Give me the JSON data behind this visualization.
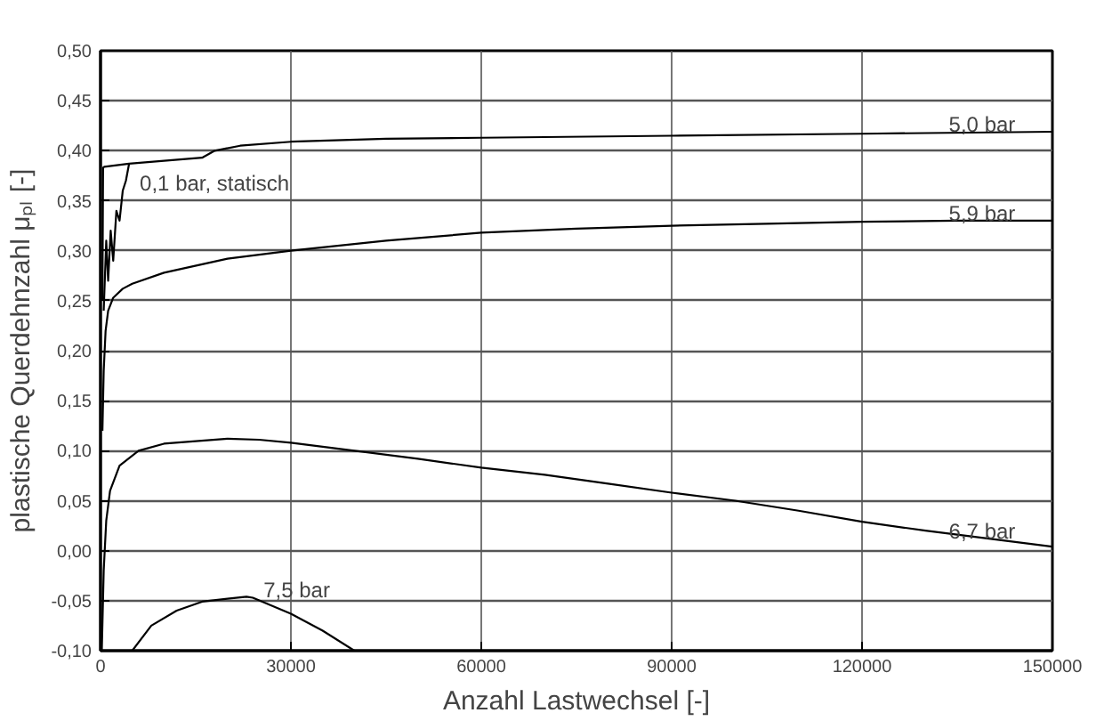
{
  "chart_data": {
    "type": "line",
    "xlabel": "Anzahl Lastwechsel [-]",
    "ylabel": "plastische Querdehnzahl μₚₗ [-]",
    "xlim": [
      0,
      150000
    ],
    "xticks": [
      0,
      30000,
      60000,
      90000,
      120000,
      150000
    ],
    "ylim": [
      -0.1,
      0.5
    ],
    "yticks": [
      {
        "value": -0.1,
        "label": "-0,10"
      },
      {
        "value": -0.05,
        "label": "-0,05"
      },
      {
        "value": 0,
        "label": "0,00"
      },
      {
        "value": 0.05,
        "label": "0,05"
      },
      {
        "value": 0.1,
        "label": "0,10"
      },
      {
        "value": 0.15,
        "label": "0,15"
      },
      {
        "value": 0.2,
        "label": "0,20"
      },
      {
        "value": 0.25,
        "label": "0,25"
      },
      {
        "value": 0.3,
        "label": "0,30"
      },
      {
        "value": 0.35,
        "label": "0,35"
      },
      {
        "value": 0.4,
        "label": "0,40"
      },
      {
        "value": 0.45,
        "label": "0,45"
      },
      {
        "value": 0.5,
        "label": "0,50"
      }
    ],
    "grid": true,
    "marker": "none",
    "line_style": "solid",
    "series": [
      {
        "color": "#000000",
        "x": [
          500,
          900,
          1200,
          1600,
          2000,
          2500,
          3000,
          3500,
          4000,
          4500
        ],
        "values": [
          0.24,
          0.31,
          0.27,
          0.32,
          0.29,
          0.34,
          0.33,
          0.36,
          0.37,
          0.387
        ]
      },
      {
        "color": "#000000",
        "x": [
          300,
          400,
          600,
          4500,
          10000,
          16000,
          18000,
          22000,
          30000,
          45000,
          60000,
          90000,
          120000,
          150000
        ],
        "values": [
          0.25,
          0.383,
          0.384,
          0.387,
          0.39,
          0.393,
          0.4,
          0.405,
          0.409,
          0.412,
          0.413,
          0.415,
          0.417,
          0.419
        ]
      },
      {
        "color": "#000000",
        "x": [
          300,
          500,
          800,
          1200,
          2000,
          3500,
          5000,
          10000,
          20000,
          30000,
          45000,
          60000,
          75000,
          90000,
          105000,
          120000,
          135000,
          150000
        ],
        "values": [
          0.12,
          0.18,
          0.22,
          0.24,
          0.253,
          0.262,
          0.267,
          0.278,
          0.292,
          0.3,
          0.31,
          0.318,
          0.322,
          0.325,
          0.327,
          0.329,
          0.33,
          0.33
        ]
      },
      {
        "color": "#000000",
        "x": [
          200,
          500,
          900,
          1500,
          3000,
          6000,
          10000,
          20000,
          25000,
          30000,
          40000,
          50000,
          60000,
          70000,
          80000,
          90000,
          100000,
          110000,
          120000,
          130000,
          140000,
          150000
        ],
        "values": [
          -0.1,
          -0.02,
          0.03,
          0.06,
          0.085,
          0.1,
          0.107,
          0.112,
          0.111,
          0.108,
          0.1,
          0.092,
          0.083,
          0.076,
          0.067,
          0.058,
          0.05,
          0.04,
          0.029,
          0.02,
          0.012,
          0.004
        ]
      },
      {
        "color": "#000000",
        "x": [
          5000,
          8000,
          12000,
          16000,
          20000,
          23000,
          24000,
          30000,
          35000,
          40000
        ],
        "values": [
          -0.1,
          -0.075,
          -0.06,
          -0.051,
          -0.048,
          -0.046,
          -0.047,
          -0.063,
          -0.08,
          -0.1
        ]
      }
    ],
    "annotations": [
      {
        "text": "0,1 bar, statisch",
        "x": 4500,
        "y": 0.36
      },
      {
        "text": "5,0 bar",
        "x": 132000,
        "y": 0.419
      },
      {
        "text": "5,9 bar",
        "x": 132000,
        "y": 0.33
      },
      {
        "text": "6,7 bar",
        "x": 132000,
        "y": 0.012
      },
      {
        "text": "7,5 bar",
        "x": 24000,
        "y": -0.047
      }
    ]
  }
}
